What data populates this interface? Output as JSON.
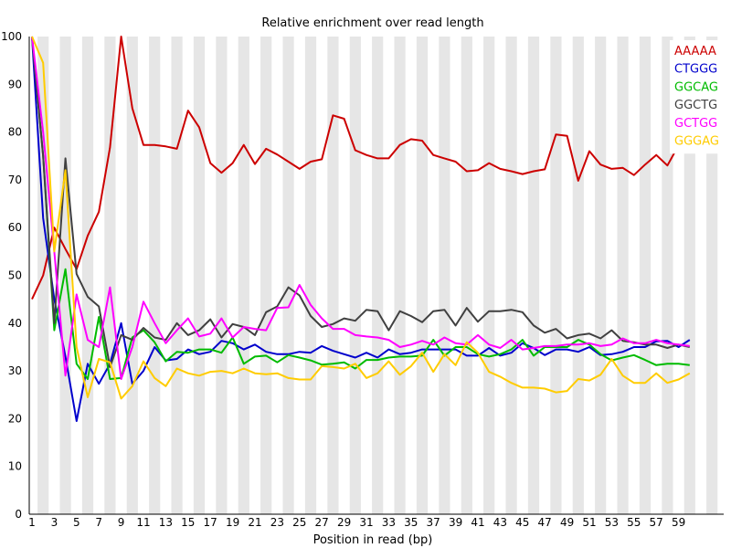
{
  "chart_data": {
    "type": "line",
    "title": "Relative enrichment over read length",
    "xlabel": "Position in read (bp)",
    "ylabel": "",
    "x": [
      1,
      2,
      3,
      4,
      5,
      6,
      7,
      8,
      9,
      10,
      11,
      12,
      13,
      14,
      15,
      16,
      17,
      18,
      19,
      20,
      21,
      22,
      23,
      24,
      25,
      26,
      27,
      28,
      29,
      30,
      31,
      32,
      33,
      34,
      35,
      36,
      37,
      38,
      39,
      40,
      41,
      42,
      43,
      44,
      45,
      46,
      47,
      48,
      49,
      50,
      51,
      52,
      53,
      54,
      55,
      56,
      57,
      58,
      59,
      60
    ],
    "xticks": [
      "1",
      "3",
      "5",
      "7",
      "9",
      "11",
      "13",
      "15",
      "17",
      "19",
      "21",
      "23",
      "25",
      "27",
      "29",
      "31",
      "33",
      "35",
      "37",
      "39",
      "41",
      "43",
      "45",
      "47",
      "49",
      "51",
      "53",
      "55",
      "57",
      "59"
    ],
    "yticks": [
      "0",
      "10",
      "20",
      "30",
      "40",
      "50",
      "60",
      "70",
      "80",
      "90",
      "100"
    ],
    "ylim": [
      0,
      100
    ],
    "grid": "alternating vertical bands",
    "legend_position": "top-right",
    "series": [
      {
        "name": "AAAAA",
        "color": "#cc0000",
        "values": [
          45,
          50,
          60,
          55.5,
          51.3,
          58.3,
          63.3,
          76.8,
          100,
          85,
          77.3,
          77.3,
          77,
          76.5,
          84.5,
          81,
          73.5,
          71.5,
          73.5,
          77.3,
          73.3,
          76.5,
          75.3,
          73.8,
          72.3,
          73.8,
          74.3,
          83.5,
          82.8,
          76.2,
          75.2,
          74.5,
          74.5,
          77.3,
          78.5,
          78.2,
          75.2,
          74.5,
          73.8,
          71.8,
          72,
          73.5,
          72.3,
          71.8,
          71.2,
          71.8,
          72.2,
          79.5,
          79.2,
          69.8,
          76,
          73.2,
          72.3,
          72.5,
          71,
          73.2,
          75.2,
          73,
          77.2,
          80
        ]
      },
      {
        "name": "CTGGG",
        "color": "#0000cc",
        "values": [
          100,
          62,
          45,
          33,
          19.5,
          31.5,
          27.3,
          31.5,
          40,
          27.3,
          30,
          35,
          32.2,
          32.5,
          34.5,
          33.5,
          34,
          36.3,
          35.8,
          34.5,
          35.5,
          34,
          33.5,
          33.5,
          34,
          33.8,
          35.2,
          34.2,
          33.5,
          32.8,
          33.8,
          32.8,
          34.5,
          33.5,
          33.8,
          34.5,
          34.5,
          34.5,
          34.5,
          33.2,
          33.2,
          34.8,
          33.2,
          33.8,
          35.8,
          34.8,
          33.3,
          34.5,
          34.5,
          34,
          35,
          33.3,
          33.5,
          34,
          35,
          35,
          36.2,
          36.3,
          35,
          36.5
        ]
      },
      {
        "name": "GGCAG",
        "color": "#00bb00",
        "values": [
          100,
          75,
          38.5,
          51.3,
          31.5,
          28.3,
          41.3,
          28.3,
          28.5,
          37,
          38.5,
          36,
          32,
          34,
          33.8,
          34.5,
          34.5,
          33.8,
          37,
          31.5,
          33,
          33.2,
          31.8,
          33.3,
          32.8,
          32.2,
          31.3,
          31.5,
          31.8,
          30.5,
          32.3,
          32.3,
          32.8,
          33,
          33,
          33.2,
          36.5,
          33.2,
          35,
          35,
          33.5,
          33,
          33.5,
          34.5,
          36.5,
          33.2,
          35,
          35,
          35,
          36.5,
          35.5,
          33.5,
          32.2,
          32.8,
          33.3,
          32.3,
          31.2,
          31.5,
          31.5,
          31.2
        ]
      },
      {
        "name": "GGCTG",
        "color": "#404040",
        "values": [
          100,
          75,
          40,
          74.5,
          50.3,
          45.5,
          43.5,
          30.8,
          37.5,
          36.5,
          39,
          37,
          36.5,
          40,
          37.5,
          38.5,
          40.8,
          37,
          39.8,
          39.2,
          37.5,
          42.3,
          43.5,
          47.5,
          45.8,
          41.5,
          39.2,
          39.8,
          41,
          40.5,
          42.8,
          42.5,
          38.5,
          42.5,
          41.5,
          40.2,
          42.5,
          42.8,
          39.5,
          43.2,
          40.3,
          42.5,
          42.5,
          42.8,
          42.3,
          39.5,
          38,
          38.8,
          36.8,
          37.5,
          37.8,
          36.8,
          38.5,
          36.3,
          36,
          35.5,
          35.5,
          34.8,
          35.5,
          35
        ]
      },
      {
        "name": "GCTGG",
        "color": "#ff00ff",
        "values": [
          100,
          80,
          55,
          29,
          46,
          36.5,
          35,
          47.5,
          28.3,
          35,
          44.5,
          40,
          35.8,
          38.5,
          41,
          37.2,
          37.8,
          41,
          37,
          39.2,
          38.8,
          38.5,
          43.2,
          43.3,
          48,
          43.8,
          41,
          38.8,
          38.8,
          37.5,
          37.2,
          37,
          36.5,
          35,
          35.5,
          36.3,
          35.5,
          37,
          35.8,
          35.5,
          37.5,
          35.5,
          34.8,
          36.5,
          34.5,
          34.8,
          35.2,
          35.2,
          35.5,
          35.5,
          35.8,
          35.2,
          35.5,
          36.8,
          35.8,
          35.8,
          36.5,
          35.8,
          35.5,
          35.2
        ]
      },
      {
        "name": "GGGAG",
        "color": "#ffcc00",
        "values": [
          100,
          94.5,
          55,
          72,
          35,
          24.5,
          32.5,
          31.8,
          24.2,
          26.8,
          32,
          28.5,
          26.8,
          30.5,
          29.5,
          29,
          29.8,
          30,
          29.5,
          30.5,
          29.5,
          29.3,
          29.5,
          28.5,
          28.2,
          28.2,
          31,
          30.8,
          30.5,
          31.5,
          28.5,
          29.5,
          32,
          29.2,
          31,
          33.8,
          29.8,
          33.5,
          31.2,
          36,
          33.8,
          29.8,
          28.8,
          27.5,
          26.5,
          26.5,
          26.3,
          25.5,
          25.8,
          28.3,
          28,
          29.2,
          32.5,
          29,
          27.5,
          27.5,
          29.5,
          27.5,
          28.2,
          29.5
        ]
      }
    ]
  }
}
